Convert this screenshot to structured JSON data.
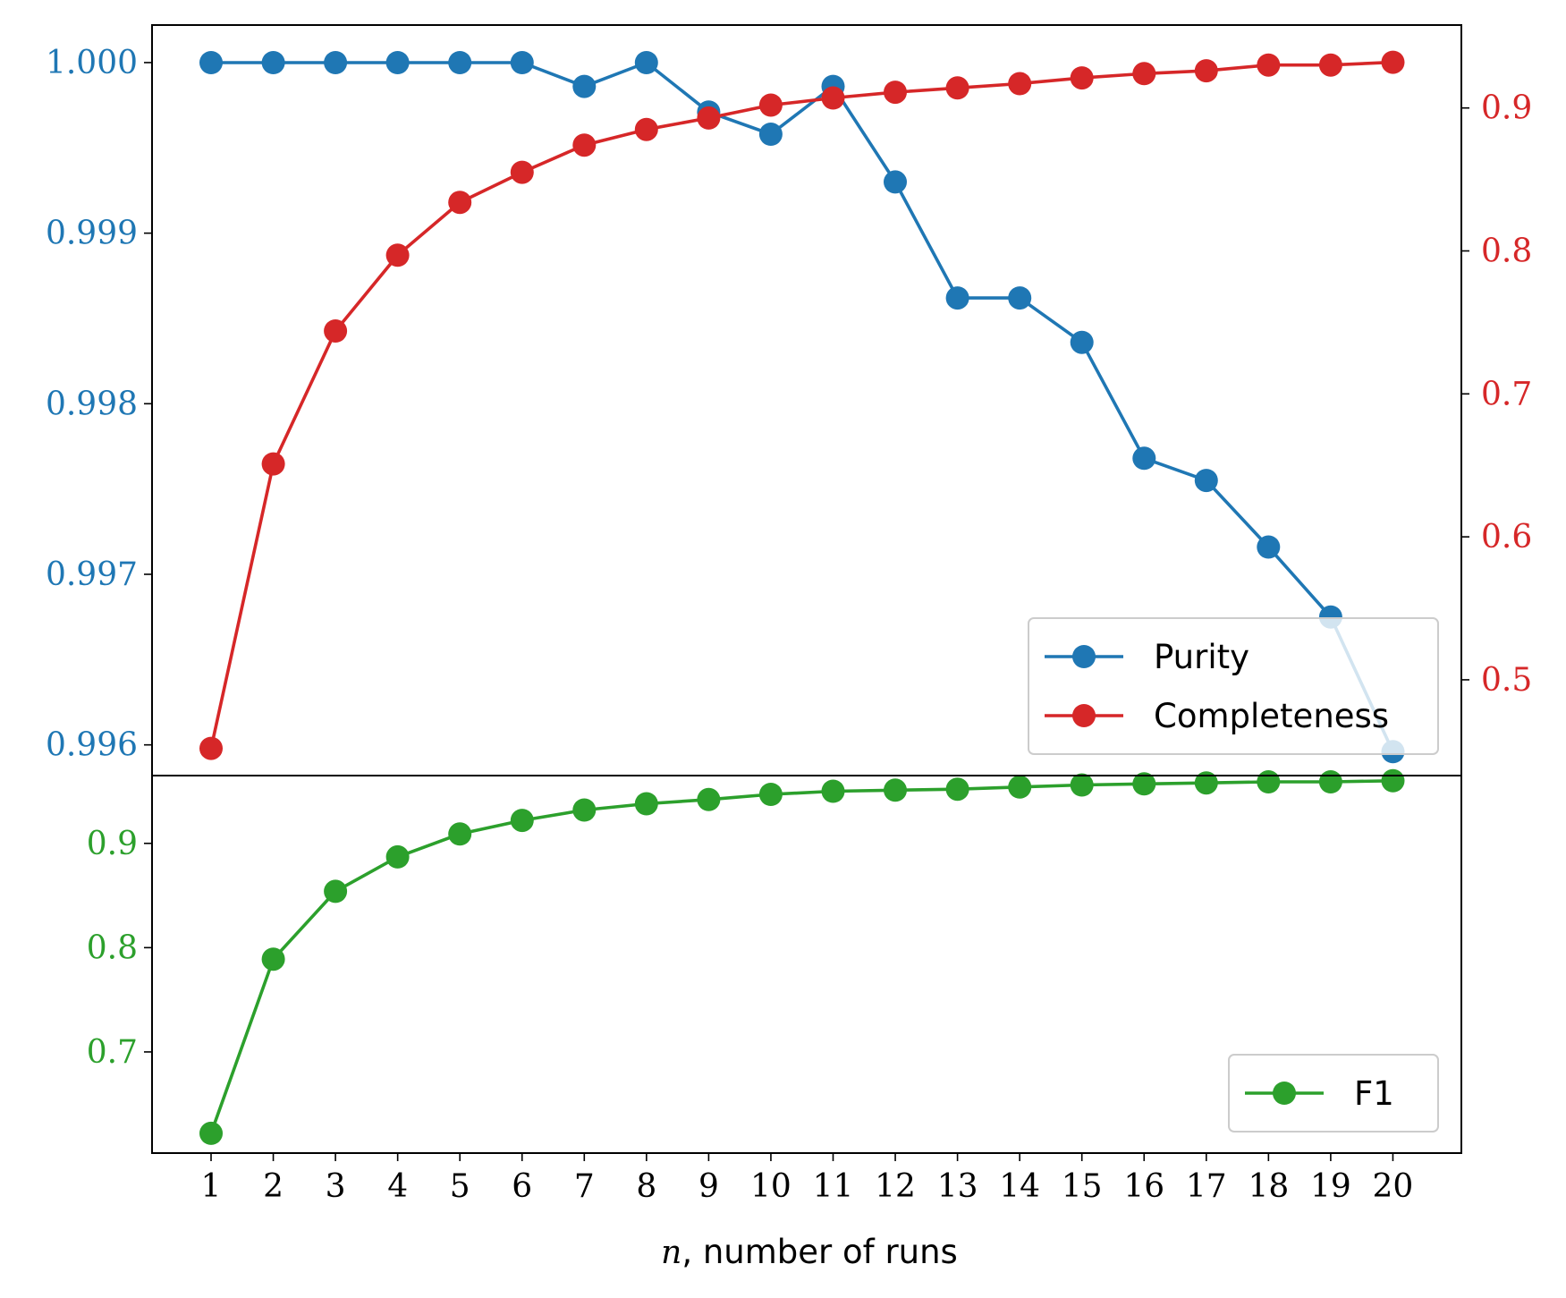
{
  "chart_data": {
    "type": "line",
    "xlabel_var": "n",
    "xlabel_text": ", number of runs",
    "x": [
      1,
      2,
      3,
      4,
      5,
      6,
      7,
      8,
      9,
      10,
      11,
      12,
      13,
      14,
      15,
      16,
      17,
      18,
      19,
      20
    ],
    "x_tick_labels": [
      "1",
      "2",
      "3",
      "4",
      "5",
      "6",
      "7",
      "8",
      "9",
      "10",
      "11",
      "12",
      "13",
      "14",
      "15",
      "16",
      "17",
      "18",
      "19",
      "20"
    ],
    "top_panel": {
      "left_axis": {
        "range": [
          0.99582,
          1.00022
        ],
        "ticks": [
          0.996,
          0.997,
          0.998,
          0.999,
          1.0
        ],
        "tick_labels": [
          "0.996",
          "0.997",
          "0.998",
          "0.999",
          "1.000"
        ],
        "color": "#1f77b4"
      },
      "right_axis": {
        "range": [
          0.433,
          0.958
        ],
        "ticks": [
          0.5,
          0.6,
          0.7,
          0.8,
          0.9
        ],
        "tick_labels": [
          "0.5",
          "0.6",
          "0.7",
          "0.8",
          "0.9"
        ],
        "color": "#d62728"
      },
      "series": [
        {
          "name": "Purity",
          "axis": "left",
          "color": "#1f77b4",
          "values": [
            1.0,
            1.0,
            1.0,
            1.0,
            1.0,
            1.0,
            0.99986,
            1.0,
            0.99971,
            0.99958,
            0.99986,
            0.9993,
            0.99862,
            0.99862,
            0.99836,
            0.99768,
            0.99755,
            0.99716,
            0.99675,
            0.99596
          ]
        },
        {
          "name": "Completeness",
          "axis": "right",
          "color": "#d62728",
          "values": [
            0.452,
            0.651,
            0.744,
            0.797,
            0.834,
            0.855,
            0.874,
            0.885,
            0.893,
            0.902,
            0.907,
            0.911,
            0.914,
            0.917,
            0.921,
            0.924,
            0.926,
            0.93,
            0.93,
            0.932
          ]
        }
      ],
      "legend_position": "lower-right"
    },
    "bottom_panel": {
      "left_axis": {
        "range": [
          0.603,
          0.965
        ],
        "ticks": [
          0.7,
          0.8,
          0.9
        ],
        "tick_labels": [
          "0.7",
          "0.8",
          "0.9"
        ],
        "color": "#2ca02c"
      },
      "series": [
        {
          "name": "F1",
          "axis": "left",
          "color": "#2ca02c",
          "values": [
            0.622,
            0.789,
            0.854,
            0.887,
            0.909,
            0.922,
            0.932,
            0.938,
            0.942,
            0.947,
            0.95,
            0.951,
            0.952,
            0.954,
            0.956,
            0.957,
            0.958,
            0.959,
            0.959,
            0.96
          ]
        }
      ],
      "legend_position": "lower-right"
    }
  }
}
